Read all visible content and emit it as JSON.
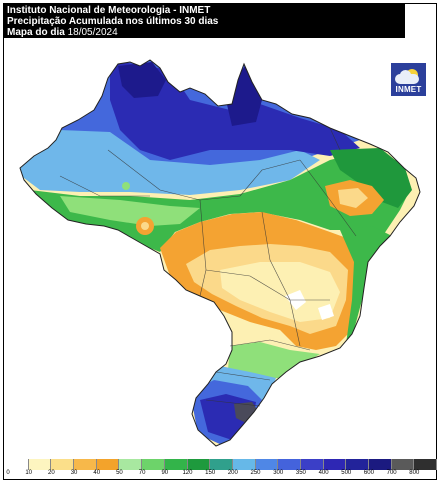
{
  "header": {
    "line1": "Instituto Nacional de Meteorologia - INMET",
    "line2": "Precipitação Acumulada nos últimos 30 dias",
    "line3_label": "Mapa do dia",
    "line3_date": "18/05/2024"
  },
  "logo": {
    "text": "INMET",
    "icon": "sun-cloud-icon"
  },
  "legend": {
    "ticks": [
      "0",
      "10",
      "20",
      "30",
      "40",
      "50",
      "70",
      "90",
      "120",
      "150",
      "200",
      "250",
      "300",
      "350",
      "400",
      "500",
      "600",
      "700",
      "800"
    ],
    "colors": [
      "#ffffff",
      "#fdf5c0",
      "#fbdf8a",
      "#f7b84a",
      "#f3a32b",
      "#a8e8a0",
      "#6dd36a",
      "#33b44a",
      "#1e9a3d",
      "#30a08c",
      "#66b8e8",
      "#4f87e6",
      "#4463dc",
      "#3b3fc7",
      "#2e27b4",
      "#22239a",
      "#1b1a80",
      "#5a5a5a",
      "#2f2f2f"
    ]
  },
  "map": {
    "colors": {
      "dry_light": "#fdf0b3",
      "dry_medium": "#fbd98a",
      "orange": "#f4a332",
      "light_green": "#8fe07a",
      "green": "#3db84a",
      "dark_green": "#1f983c",
      "teal": "#42a88e",
      "light_blue": "#6fb7ea",
      "blue": "#4468dc",
      "dark_blue": "#2b2bb3",
      "navy": "#1d1a8c",
      "gray": "#4a4a5a"
    }
  }
}
